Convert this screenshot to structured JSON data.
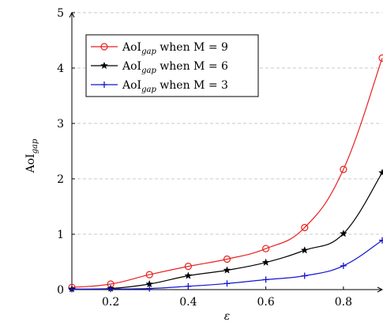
{
  "chart_data": {
    "type": "line",
    "xlabel": "ε",
    "ylabel_base": "AoI",
    "ylabel_sub": "gap",
    "xlim": [
      0.1,
      0.9
    ],
    "ylim": [
      0,
      5
    ],
    "xticks": [
      0.2,
      0.4,
      0.6,
      0.8
    ],
    "xtick_labels": [
      "0.2",
      "0.4",
      "0.6",
      "0.8"
    ],
    "yticks": [
      0,
      1,
      2,
      3,
      4,
      5
    ],
    "ytick_labels": [
      "0",
      "1",
      "2",
      "3",
      "4",
      "5"
    ],
    "grid": "horizontal dashed",
    "legend_position": "top-left",
    "x": [
      0.1,
      0.2,
      0.3,
      0.4,
      0.5,
      0.6,
      0.7,
      0.8,
      0.9
    ],
    "series": [
      {
        "name": "AoIgap when M = 9",
        "legend_base": "AoI",
        "legend_sub": "gap",
        "legend_rest": " when M = 9",
        "color": "#e8201f",
        "marker": "circle",
        "values": [
          0.04,
          0.1,
          0.27,
          0.42,
          0.55,
          0.74,
          1.12,
          2.17,
          4.18
        ]
      },
      {
        "name": "AoIgap when M = 6",
        "legend_base": "AoI",
        "legend_sub": "gap",
        "legend_rest": " when M = 6",
        "color": "#000000",
        "marker": "star",
        "values": [
          0.01,
          0.02,
          0.1,
          0.25,
          0.35,
          0.49,
          0.71,
          1.01,
          2.11
        ]
      },
      {
        "name": "AoIgap when M = 3",
        "legend_base": "AoI",
        "legend_sub": "gap",
        "legend_rest": " when M = 3",
        "color": "#1414d2",
        "marker": "plus",
        "values": [
          0.005,
          0.01,
          0.02,
          0.06,
          0.11,
          0.18,
          0.25,
          0.43,
          0.89
        ]
      }
    ]
  }
}
